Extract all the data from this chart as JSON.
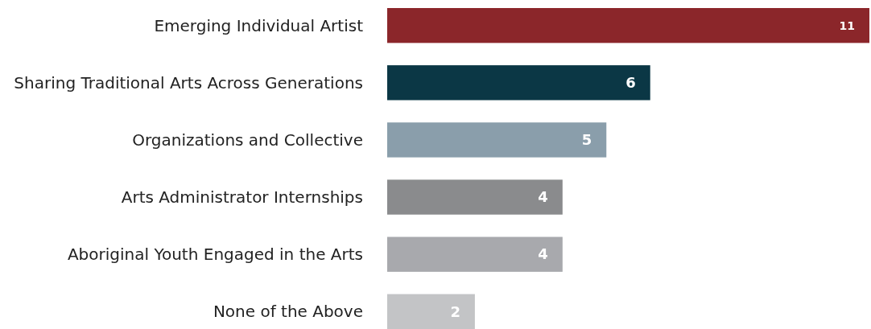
{
  "chart_data": {
    "type": "bar",
    "orientation": "horizontal",
    "data_labels": true,
    "categories": [
      "Emerging Individual Artist",
      "Sharing Traditional Arts Across Generations",
      "Organizations and Collective",
      "Arts Administrator Internships",
      "Aboriginal Youth Engaged in the Arts",
      "None of the Above"
    ],
    "values": [
      11,
      6,
      5,
      4,
      4,
      2
    ],
    "colors": [
      "#8b262a",
      "#0b3745",
      "#8a9eab",
      "#8a8b8d",
      "#a8a9ad",
      "#c3c4c6"
    ]
  }
}
